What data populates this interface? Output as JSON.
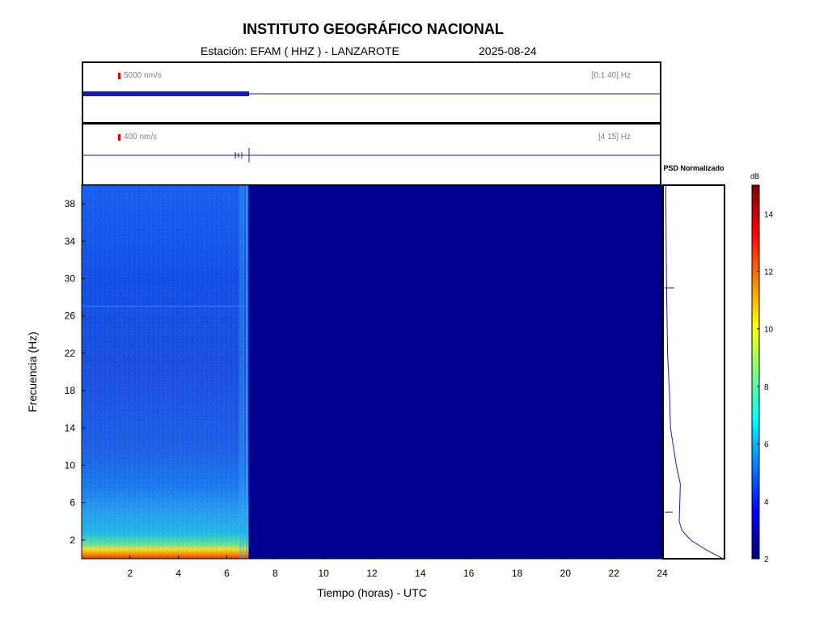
{
  "header": {
    "institution": "INSTITUTO GEOGRÁFICO NACIONAL",
    "station": "Estación:  EFAM ( HHZ ) - LANZAROTE",
    "date": "2025-08-24"
  },
  "traces": [
    {
      "amplitude_label": "5000 nm/s",
      "band_label": "[0.1 40] Hz"
    },
    {
      "amplitude_label": "400 nm/s",
      "band_label": "[4 15] Hz"
    }
  ],
  "chart_data": {
    "type": "heatmap",
    "xlabel": "Tiempo (horas) - UTC",
    "ylabel": "Frecuencia  (Hz)",
    "xlim": [
      0,
      24
    ],
    "ylim": [
      0,
      40
    ],
    "x_ticks": [
      2,
      4,
      6,
      8,
      10,
      12,
      14,
      16,
      18,
      20,
      22,
      24
    ],
    "y_ticks": [
      2,
      6,
      10,
      14,
      18,
      22,
      26,
      30,
      34,
      38
    ],
    "data_end_hour": 6.9,
    "colorbar": {
      "unit": "dB",
      "range": [
        2,
        15
      ],
      "ticks": [
        2,
        4,
        6,
        8,
        10,
        12,
        14
      ]
    },
    "psd_panel": {
      "title": "PSD Normalizado",
      "profile": [
        {
          "freq": 40,
          "level": 0.02
        },
        {
          "freq": 30,
          "level": 0.03
        },
        {
          "freq": 26,
          "level": 0.04
        },
        {
          "freq": 22,
          "level": 0.05
        },
        {
          "freq": 18,
          "level": 0.08
        },
        {
          "freq": 14,
          "level": 0.1
        },
        {
          "freq": 10,
          "level": 0.2
        },
        {
          "freq": 8,
          "level": 0.27
        },
        {
          "freq": 6,
          "level": 0.26
        },
        {
          "freq": 4,
          "level": 0.25
        },
        {
          "freq": 3,
          "level": 0.3
        },
        {
          "freq": 2,
          "level": 0.45
        },
        {
          "freq": 1,
          "level": 0.7
        },
        {
          "freq": 0,
          "level": 1.0
        }
      ]
    }
  }
}
